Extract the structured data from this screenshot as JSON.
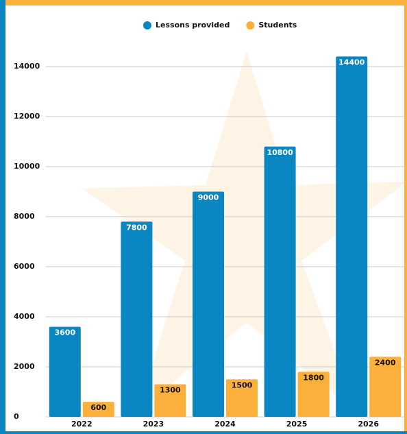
{
  "chart_data": {
    "type": "bar",
    "categories": [
      "2022",
      "2023",
      "2024",
      "2025",
      "2026"
    ],
    "series": [
      {
        "name": "Lessons provided",
        "color": "#0a86c2",
        "values": [
          3600,
          7800,
          9000,
          10800,
          14400
        ]
      },
      {
        "name": "Students",
        "color": "#fbb03b",
        "values": [
          600,
          1300,
          1500,
          1800,
          2400
        ]
      }
    ],
    "ylim": [
      0,
      15000
    ],
    "yticks": [
      0,
      2000,
      4000,
      6000,
      8000,
      10000,
      12000,
      14000
    ],
    "grid": true,
    "legend": "top"
  }
}
